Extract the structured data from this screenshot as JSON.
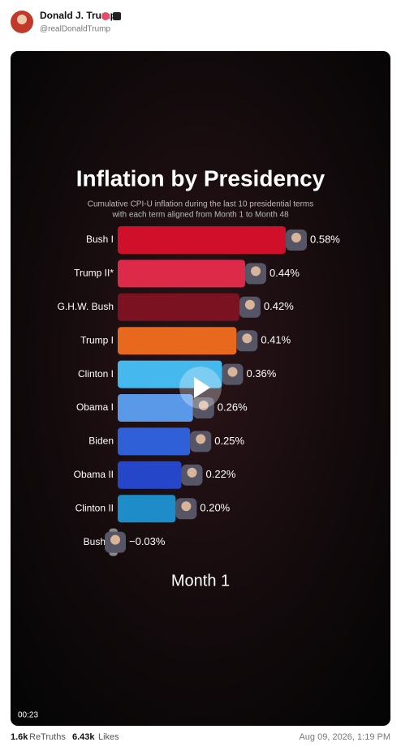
{
  "post": {
    "name": "Donald J. Trump",
    "handle": "@realDonaldTrump",
    "video_time": "00:23",
    "retruths_count": "1.6k",
    "retruths_label": "ReTruths",
    "likes_count": "6.43k",
    "likes_label": "Likes",
    "date": "Aug 09, 2026, 1:19 PM"
  },
  "chart_data": {
    "type": "bar",
    "orientation": "horizontal",
    "title": "Inflation by Presidency",
    "subtitle": [
      "Cumulative CPI-U inflation during the last 10 presidential terms",
      "with each term aligned from Month 1 to Month 48"
    ],
    "annotation": "Month 1",
    "categories": [
      "Bush I",
      "Trump II*",
      "G.H.W. Bush",
      "Trump I",
      "Clinton I",
      "Obama I",
      "Biden",
      "Obama II",
      "Clinton II",
      "Bush II"
    ],
    "values": [
      0.58,
      0.44,
      0.42,
      0.41,
      0.36,
      0.26,
      0.25,
      0.22,
      0.2,
      -0.03
    ],
    "value_labels": [
      "0.58%",
      "0.44%",
      "0.42%",
      "0.41%",
      "0.36%",
      "0.26%",
      "0.25%",
      "0.22%",
      "0.20%",
      "−0.03%"
    ],
    "colors": [
      "#d0102a",
      "#dc2a48",
      "#7a1222",
      "#e8691e",
      "#45b8ee",
      "#5a98e8",
      "#2f60d8",
      "#2546c8",
      "#1e8cc8",
      "#888888"
    ]
  }
}
